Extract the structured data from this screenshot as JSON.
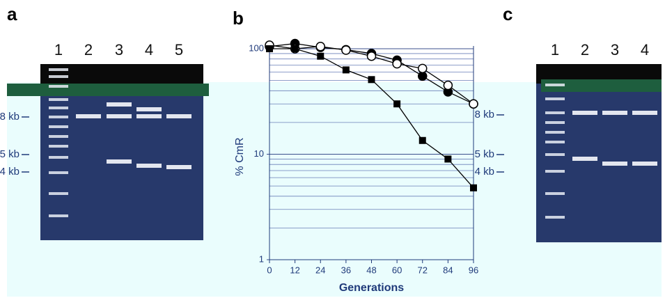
{
  "panels": {
    "a": {
      "label": "a",
      "lanes": [
        "1",
        "2",
        "3",
        "4",
        "5"
      ],
      "sizes": [
        "8 kb",
        "5 kb",
        "4 kb"
      ]
    },
    "c": {
      "label": "c",
      "lanes": [
        "1",
        "2",
        "3",
        "4"
      ],
      "sizes": [
        "8 kb",
        "5 kb",
        "4 kb"
      ]
    }
  },
  "chart_data": {
    "type": "line",
    "label": "b",
    "ylabel": "% CmR",
    "xlabel": "Generations",
    "x": [
      0,
      12,
      24,
      36,
      48,
      60,
      72,
      84,
      96
    ],
    "series": [
      {
        "marker": "filled-circle",
        "color": "#000000",
        "values": [
          105,
          112,
          103,
          98,
          90,
          78,
          55,
          39,
          30
        ]
      },
      {
        "marker": "open-circle",
        "color": "#000000",
        "values": [
          108,
          100,
          105,
          97,
          85,
          72,
          65,
          45,
          30
        ]
      },
      {
        "marker": "square",
        "color": "#000000",
        "values": [
          100,
          100,
          85,
          63,
          51,
          30,
          13.5,
          9,
          4.8
        ]
      }
    ],
    "xlim": [
      0,
      96
    ],
    "xticks": [
      0,
      12,
      24,
      36,
      48,
      60,
      72,
      84,
      96
    ],
    "ylim": [
      1,
      100
    ],
    "yticks": [
      1,
      10,
      100
    ],
    "log_y": true,
    "grid": true
  }
}
